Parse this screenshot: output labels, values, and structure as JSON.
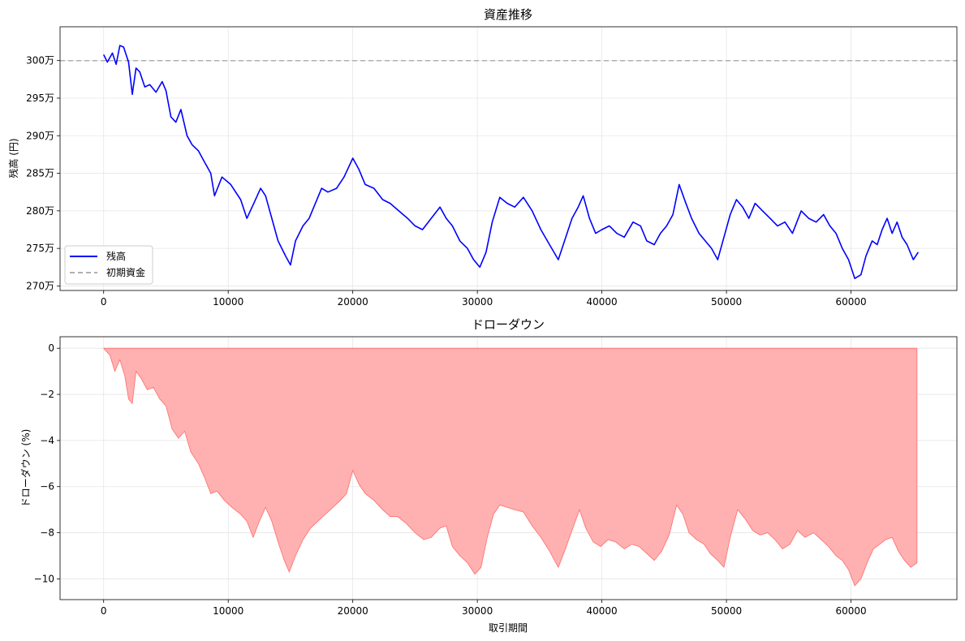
{
  "chart_data": [
    {
      "type": "line",
      "title": "資産推移",
      "xlabel": "",
      "ylabel": "残高 (円)",
      "xlim": [
        -3500,
        68500
      ],
      "ylim": [
        2694000,
        3045000
      ],
      "x_ticks": [
        0,
        10000,
        20000,
        30000,
        40000,
        50000,
        60000
      ],
      "x_tick_labels": [
        "0",
        "10000",
        "20000",
        "30000",
        "40000",
        "50000",
        "60000"
      ],
      "y_ticks": [
        2700000,
        2750000,
        2800000,
        2850000,
        2900000,
        2950000,
        3000000
      ],
      "y_tick_labels": [
        "270万",
        "275万",
        "280万",
        "285万",
        "290万",
        "295万",
        "300万"
      ],
      "grid": true,
      "legend_position": "lower-left",
      "series": [
        {
          "name": "残高",
          "color": "#0000ff",
          "style": "solid",
          "x": [
            0,
            300,
            700,
            1000,
            1300,
            1600,
            2000,
            2300,
            2600,
            2900,
            3300,
            3700,
            4200,
            4700,
            5000,
            5400,
            5800,
            6200,
            6700,
            7100,
            7600,
            8100,
            8600,
            8900,
            9500,
            10200,
            11000,
            11500,
            12000,
            12600,
            13000,
            13500,
            14000,
            14600,
            15000,
            15400,
            16000,
            16500,
            17000,
            17500,
            18000,
            18700,
            19300,
            20000,
            20500,
            21000,
            21700,
            22400,
            23000,
            23700,
            24400,
            25000,
            25600,
            26300,
            27000,
            27500,
            28000,
            28600,
            29200,
            29700,
            30200,
            30700,
            31200,
            31800,
            32400,
            33000,
            33700,
            34400,
            35100,
            35800,
            36500,
            37000,
            37600,
            38100,
            38500,
            39000,
            39500,
            40000,
            40600,
            41200,
            41800,
            42500,
            43100,
            43600,
            44200,
            44700,
            45200,
            45700,
            46200,
            46700,
            47200,
            47800,
            48300,
            48800,
            49300,
            49800,
            50300,
            50800,
            51300,
            51800,
            52300,
            52900,
            53500,
            54100,
            54700,
            55300,
            56000,
            56600,
            57200,
            57800,
            58300,
            58800,
            59300,
            59800,
            60300,
            60800,
            61200,
            61700,
            62100,
            62500,
            62900,
            63300,
            63700,
            64100,
            64500,
            65000,
            65400
          ],
          "y": [
            3008000,
            2998000,
            3010000,
            2995000,
            3020000,
            3018000,
            2998000,
            2955000,
            2990000,
            2985000,
            2965000,
            2968000,
            2958000,
            2972000,
            2960000,
            2925000,
            2918000,
            2935000,
            2900000,
            2888000,
            2880000,
            2865000,
            2850000,
            2820000,
            2845000,
            2835000,
            2815000,
            2790000,
            2808000,
            2830000,
            2820000,
            2790000,
            2760000,
            2740000,
            2728000,
            2760000,
            2780000,
            2790000,
            2810000,
            2830000,
            2825000,
            2830000,
            2845000,
            2870000,
            2855000,
            2835000,
            2830000,
            2815000,
            2810000,
            2800000,
            2790000,
            2780000,
            2775000,
            2790000,
            2805000,
            2790000,
            2780000,
            2760000,
            2750000,
            2735000,
            2725000,
            2745000,
            2785000,
            2818000,
            2810000,
            2805000,
            2818000,
            2800000,
            2775000,
            2755000,
            2735000,
            2760000,
            2790000,
            2805000,
            2820000,
            2790000,
            2770000,
            2775000,
            2780000,
            2770000,
            2765000,
            2785000,
            2780000,
            2760000,
            2755000,
            2770000,
            2780000,
            2795000,
            2835000,
            2812000,
            2790000,
            2770000,
            2760000,
            2750000,
            2735000,
            2765000,
            2795000,
            2815000,
            2805000,
            2790000,
            2810000,
            2800000,
            2790000,
            2780000,
            2785000,
            2770000,
            2800000,
            2790000,
            2785000,
            2795000,
            2780000,
            2770000,
            2750000,
            2735000,
            2710000,
            2715000,
            2740000,
            2760000,
            2755000,
            2775000,
            2790000,
            2770000,
            2785000,
            2765000,
            2755000,
            2735000,
            2745000
          ]
        },
        {
          "name": "初期資金",
          "color": "#b0b0b0",
          "style": "dashed",
          "x": [
            -3500,
            68500
          ],
          "y": [
            3000000,
            3000000
          ]
        }
      ]
    },
    {
      "type": "area",
      "title": "ドローダウン",
      "xlabel": "取引期間",
      "ylabel": "ドローダウン (%)",
      "xlim": [
        -3500,
        68500
      ],
      "ylim": [
        -10.9,
        0.5
      ],
      "x_ticks": [
        0,
        10000,
        20000,
        30000,
        40000,
        50000,
        60000
      ],
      "x_tick_labels": [
        "0",
        "10000",
        "20000",
        "30000",
        "40000",
        "50000",
        "60000"
      ],
      "y_ticks": [
        0,
        -2,
        -4,
        -6,
        -8,
        -10
      ],
      "y_tick_labels": [
        "0",
        "−2",
        "−4",
        "−6",
        "−8",
        "−10"
      ],
      "grid": true,
      "series": [
        {
          "name": "",
          "color": "#ff6b6b",
          "fill_color": "#ffb0b0",
          "x": [
            0,
            500,
            900,
            1300,
            1700,
            2000,
            2300,
            2600,
            3000,
            3500,
            4000,
            4500,
            5000,
            5500,
            6000,
            6500,
            7000,
            7600,
            8100,
            8600,
            9100,
            9700,
            10300,
            11000,
            11500,
            12000,
            12500,
            13000,
            13500,
            14000,
            14500,
            14900,
            15400,
            16000,
            16600,
            17200,
            17800,
            18400,
            19000,
            19500,
            20000,
            20500,
            21000,
            21700,
            22400,
            23000,
            23600,
            24300,
            25000,
            25700,
            26300,
            27000,
            27500,
            28000,
            28600,
            29200,
            29800,
            30300,
            30800,
            31300,
            31800,
            32400,
            33000,
            33700,
            34400,
            35100,
            35800,
            36500,
            37000,
            37600,
            38200,
            38700,
            39300,
            39900,
            40500,
            41100,
            41800,
            42400,
            43000,
            43600,
            44200,
            44800,
            45400,
            46000,
            46500,
            47000,
            47600,
            48200,
            48700,
            49300,
            49800,
            50300,
            50900,
            51500,
            52100,
            52700,
            53300,
            53900,
            54500,
            55100,
            55700,
            56300,
            57000,
            57600,
            58200,
            58800,
            59300,
            59800,
            60300,
            60800,
            61300,
            61800,
            62300,
            62800,
            63300,
            63800,
            64300,
            64800,
            65300
          ],
          "y": [
            0,
            -0.3,
            -1.0,
            -0.5,
            -1.2,
            -2.2,
            -2.4,
            -1.0,
            -1.3,
            -1.8,
            -1.7,
            -2.2,
            -2.5,
            -3.5,
            -3.9,
            -3.6,
            -4.5,
            -5.0,
            -5.6,
            -6.3,
            -6.2,
            -6.6,
            -6.9,
            -7.2,
            -7.5,
            -8.2,
            -7.5,
            -6.9,
            -7.5,
            -8.4,
            -9.2,
            -9.7,
            -9.0,
            -8.3,
            -7.8,
            -7.5,
            -7.2,
            -6.9,
            -6.6,
            -6.3,
            -5.3,
            -5.9,
            -6.3,
            -6.6,
            -7.0,
            -7.3,
            -7.3,
            -7.6,
            -8.0,
            -8.3,
            -8.2,
            -7.8,
            -7.7,
            -8.6,
            -9.0,
            -9.3,
            -9.8,
            -9.5,
            -8.2,
            -7.2,
            -6.8,
            -6.9,
            -7.0,
            -7.1,
            -7.7,
            -8.2,
            -8.8,
            -9.5,
            -8.8,
            -7.9,
            -7.0,
            -7.8,
            -8.4,
            -8.6,
            -8.3,
            -8.4,
            -8.7,
            -8.5,
            -8.6,
            -8.9,
            -9.2,
            -8.8,
            -8.1,
            -6.8,
            -7.2,
            -8.0,
            -8.3,
            -8.5,
            -8.9,
            -9.2,
            -9.5,
            -8.2,
            -7.0,
            -7.4,
            -7.9,
            -8.1,
            -8.0,
            -8.3,
            -8.7,
            -8.5,
            -7.9,
            -8.2,
            -8.0,
            -8.3,
            -8.6,
            -9.0,
            -9.2,
            -9.6,
            -10.3,
            -10.0,
            -9.3,
            -8.7,
            -8.5,
            -8.3,
            -8.2,
            -8.8,
            -9.2,
            -9.5,
            -9.3
          ]
        }
      ]
    }
  ],
  "legend": {
    "items": [
      {
        "label": "残高",
        "color": "#0000ff",
        "style": "solid"
      },
      {
        "label": "初期資金",
        "color": "#b0b0b0",
        "style": "dashed"
      }
    ]
  }
}
